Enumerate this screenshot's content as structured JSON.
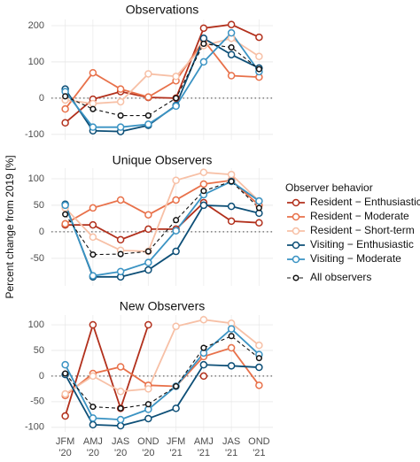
{
  "chart_data": [
    {
      "type": "line",
      "title": "Observations",
      "legend_title": "Observer behavior",
      "legend": "right",
      "grid": true,
      "zero_line": true,
      "ylim": [
        -115,
        217
      ],
      "yticks": [
        -100,
        0,
        100,
        200
      ],
      "series": [
        {
          "name": "Resident − Enthusiastic",
          "color": "#b2301c",
          "values": [
            -68,
            -3,
            18,
            2,
            0,
            193,
            203,
            168
          ]
        },
        {
          "name": "Resident − Moderate",
          "color": "#e8714a",
          "values": [
            -30,
            70,
            25,
            3,
            48,
            160,
            62,
            58
          ]
        },
        {
          "name": "Resident − Short-term",
          "color": "#f7c0a6",
          "values": [
            -5,
            -15,
            -10,
            67,
            60,
            145,
            165,
            115
          ]
        },
        {
          "name": "Visiting − Enthusiastic",
          "color": "#0d4f77",
          "values": [
            25,
            -90,
            -92,
            -75,
            -20,
            165,
            120,
            83
          ]
        },
        {
          "name": "Visiting − Moderate",
          "color": "#3a93c3",
          "values": [
            18,
            -80,
            -80,
            -72,
            -22,
            100,
            180,
            73
          ]
        },
        {
          "name": "All observers",
          "color": "#111111",
          "dash": true,
          "values": [
            5,
            -30,
            -48,
            -48,
            0,
            150,
            140,
            80
          ]
        }
      ]
    },
    {
      "type": "line",
      "title": "Unique Observers",
      "ylabel": "Percent change from 2019 [%]",
      "grid": true,
      "zero_line": true,
      "ylim": [
        -102,
        120
      ],
      "yticks": [
        -50,
        0,
        50,
        100
      ],
      "series": [
        {
          "color": "#b2301c",
          "values": [
            13,
            13,
            -15,
            5,
            5,
            55,
            20,
            17
          ]
        },
        {
          "color": "#e8714a",
          "values": [
            15,
            45,
            60,
            32,
            60,
            90,
            97,
            50
          ]
        },
        {
          "color": "#f7c0a6",
          "values": [
            45,
            -10,
            -35,
            -37,
            97,
            112,
            108,
            58
          ]
        },
        {
          "color": "#0d4f77",
          "values": [
            52,
            -85,
            -85,
            -72,
            -37,
            50,
            48,
            35
          ]
        },
        {
          "color": "#3a93c3",
          "values": [
            50,
            -83,
            -75,
            -58,
            2,
            70,
            95,
            58
          ]
        },
        {
          "color": "#111111",
          "dash": true,
          "values": [
            33,
            -43,
            -42,
            -37,
            22,
            77,
            95,
            45
          ]
        }
      ]
    },
    {
      "type": "line",
      "title": "New Observers",
      "grid": true,
      "zero_line": true,
      "categories": [
        "JFM\n'20",
        "AMJ\n'20",
        "JAS\n'20",
        "OND\n'20",
        "JFM\n'21",
        "AMJ\n'21",
        "JAS\n'21",
        "OND\n'21"
      ],
      "ylim": [
        -109,
        119
      ],
      "yticks": [
        -100,
        -50,
        0,
        50,
        100
      ],
      "series": [
        {
          "color": "#b2301c",
          "values": [
            -78,
            100,
            -63,
            100,
            null,
            0,
            null,
            null
          ]
        },
        {
          "color": "#e8714a",
          "values": [
            -38,
            5,
            18,
            -18,
            -20,
            38,
            55,
            -18
          ]
        },
        {
          "color": "#f7c0a6",
          "values": [
            -35,
            0,
            -30,
            -25,
            97,
            110,
            103,
            60
          ]
        },
        {
          "color": "#0d4f77",
          "values": [
            3,
            -95,
            -97,
            -83,
            -63,
            22,
            20,
            17
          ]
        },
        {
          "color": "#3a93c3",
          "values": [
            22,
            -82,
            -85,
            -65,
            -20,
            45,
            92,
            42
          ]
        },
        {
          "color": "#111111",
          "dash": true,
          "values": [
            5,
            -60,
            -63,
            -55,
            -20,
            55,
            78,
            35
          ]
        }
      ]
    }
  ]
}
